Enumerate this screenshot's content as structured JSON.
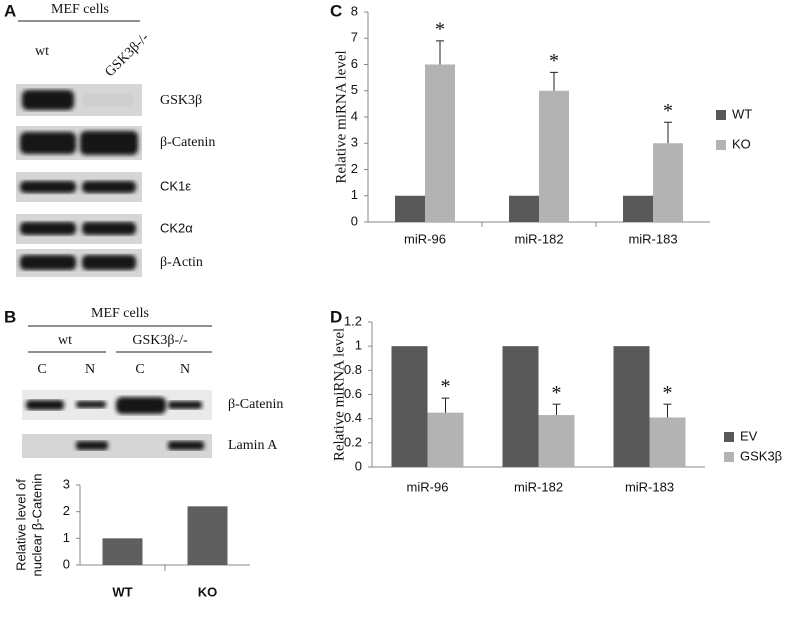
{
  "panels": {
    "A": {
      "letter": "A",
      "header": "MEF cells",
      "lanes": [
        "wt",
        "GSK3β-/-"
      ],
      "rows": [
        "GSK3β",
        "β-Catenin",
        "CK1ε",
        "CK2α",
        "β-Actin"
      ]
    },
    "B": {
      "letter": "B",
      "header": "MEF cells",
      "groups": [
        "wt",
        "GSK3β-/-"
      ],
      "lanes": [
        "C",
        "N",
        "C",
        "N"
      ],
      "rows": [
        "β-Catenin",
        "Lamin A"
      ]
    },
    "C": {
      "letter": "C"
    },
    "D": {
      "letter": "D"
    }
  },
  "chart_data": [
    {
      "type": "bar",
      "ylabel": [
        "Relative level of",
        "nuclear β-Catenin"
      ],
      "categories": [
        "WT",
        "KO"
      ],
      "series": [
        {
          "name": null,
          "color": "#5f5f5f",
          "values": [
            1,
            2.2
          ]
        }
      ],
      "ylim": [
        0,
        3
      ],
      "yticks": [
        0,
        1,
        2,
        3
      ]
    },
    {
      "type": "bar",
      "ylabel": [
        "Relative miRNA level"
      ],
      "categories": [
        "miR-96",
        "miR-182",
        "miR-183"
      ],
      "series": [
        {
          "name": "WT",
          "color": "#595959",
          "values": [
            1,
            1,
            1
          ]
        },
        {
          "name": "KO",
          "color": "#b3b3b3",
          "values": [
            6,
            5,
            3
          ],
          "errors": [
            0.9,
            0.7,
            0.8
          ]
        }
      ],
      "significance": [
        "*",
        "*",
        "*"
      ],
      "ylim": [
        0,
        8
      ],
      "yticks": [
        0,
        1,
        2,
        3,
        4,
        5,
        6,
        7,
        8
      ]
    },
    {
      "type": "bar",
      "ylabel": [
        "Relative miRNA level"
      ],
      "categories": [
        "miR-96",
        "miR-182",
        "miR-183"
      ],
      "series": [
        {
          "name": "EV",
          "color": "#595959",
          "values": [
            1,
            1,
            1
          ]
        },
        {
          "name": "GSK3β",
          "color": "#b3b3b3",
          "values": [
            0.45,
            0.43,
            0.41
          ],
          "errors": [
            0.12,
            0.09,
            0.11
          ]
        }
      ],
      "significance": [
        "*",
        "*",
        "*"
      ],
      "ylim": [
        0,
        1.2
      ],
      "yticks": [
        0,
        0.2,
        0.4,
        0.6,
        0.8,
        1,
        1.2
      ]
    }
  ]
}
